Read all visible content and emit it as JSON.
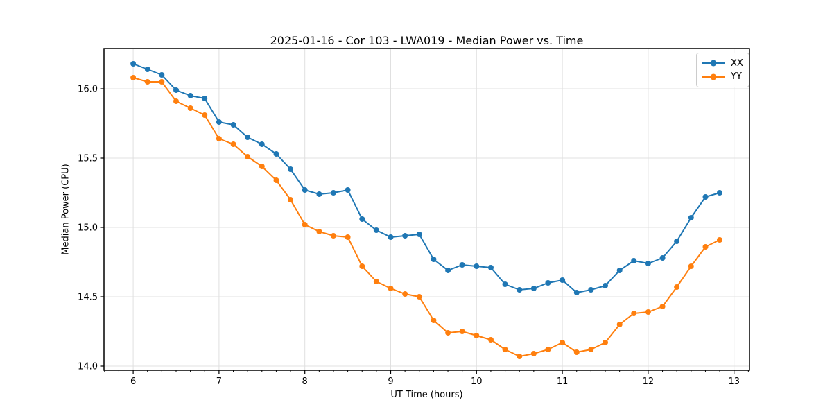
{
  "chart_data": {
    "type": "line",
    "title": "2025-01-16 - Cor 103 - LWA019 - Median Power vs. Time",
    "xlabel": "UT Time (hours)",
    "ylabel": "Median Power (CPU)",
    "grid": true,
    "legend_position": "upper right",
    "xlim": [
      5.66,
      13.18
    ],
    "ylim": [
      13.97,
      16.29
    ],
    "x_ticks": [
      6,
      7,
      8,
      9,
      10,
      11,
      12,
      13
    ],
    "y_ticks": [
      14.0,
      14.5,
      15.0,
      15.5,
      16.0
    ],
    "x_minor_tick_step": 0.1666667,
    "x": [
      6.0,
      6.167,
      6.333,
      6.5,
      6.667,
      6.833,
      7.0,
      7.167,
      7.333,
      7.5,
      7.667,
      7.833,
      8.0,
      8.167,
      8.333,
      8.5,
      8.667,
      8.833,
      9.0,
      9.167,
      9.333,
      9.5,
      9.667,
      9.833,
      10.0,
      10.167,
      10.333,
      10.5,
      10.667,
      10.833,
      11.0,
      11.167,
      11.333,
      11.5,
      11.667,
      11.833,
      12.0,
      12.167,
      12.333,
      12.5,
      12.667,
      12.833
    ],
    "series": [
      {
        "name": "XX",
        "color": "#1f77b4",
        "values": [
          16.18,
          16.14,
          16.1,
          15.99,
          15.95,
          15.93,
          15.76,
          15.74,
          15.65,
          15.6,
          15.53,
          15.42,
          15.27,
          15.24,
          15.25,
          15.27,
          15.06,
          14.98,
          14.93,
          14.94,
          14.95,
          14.77,
          14.69,
          14.73,
          14.72,
          14.71,
          14.59,
          14.55,
          14.56,
          14.6,
          14.62,
          14.53,
          14.55,
          14.58,
          14.69,
          14.76,
          14.74,
          14.78,
          14.9,
          15.07,
          15.22,
          15.25
        ]
      },
      {
        "name": "YY",
        "color": "#ff7f0e",
        "values": [
          16.08,
          16.05,
          16.05,
          15.91,
          15.86,
          15.81,
          15.64,
          15.6,
          15.51,
          15.44,
          15.34,
          15.2,
          15.02,
          14.97,
          14.94,
          14.93,
          14.72,
          14.61,
          14.56,
          14.52,
          14.5,
          14.33,
          14.24,
          14.25,
          14.22,
          14.19,
          14.12,
          14.07,
          14.09,
          14.12,
          14.17,
          14.1,
          14.12,
          14.17,
          14.3,
          14.38,
          14.39,
          14.43,
          14.57,
          14.72,
          14.86,
          14.91
        ]
      }
    ]
  }
}
